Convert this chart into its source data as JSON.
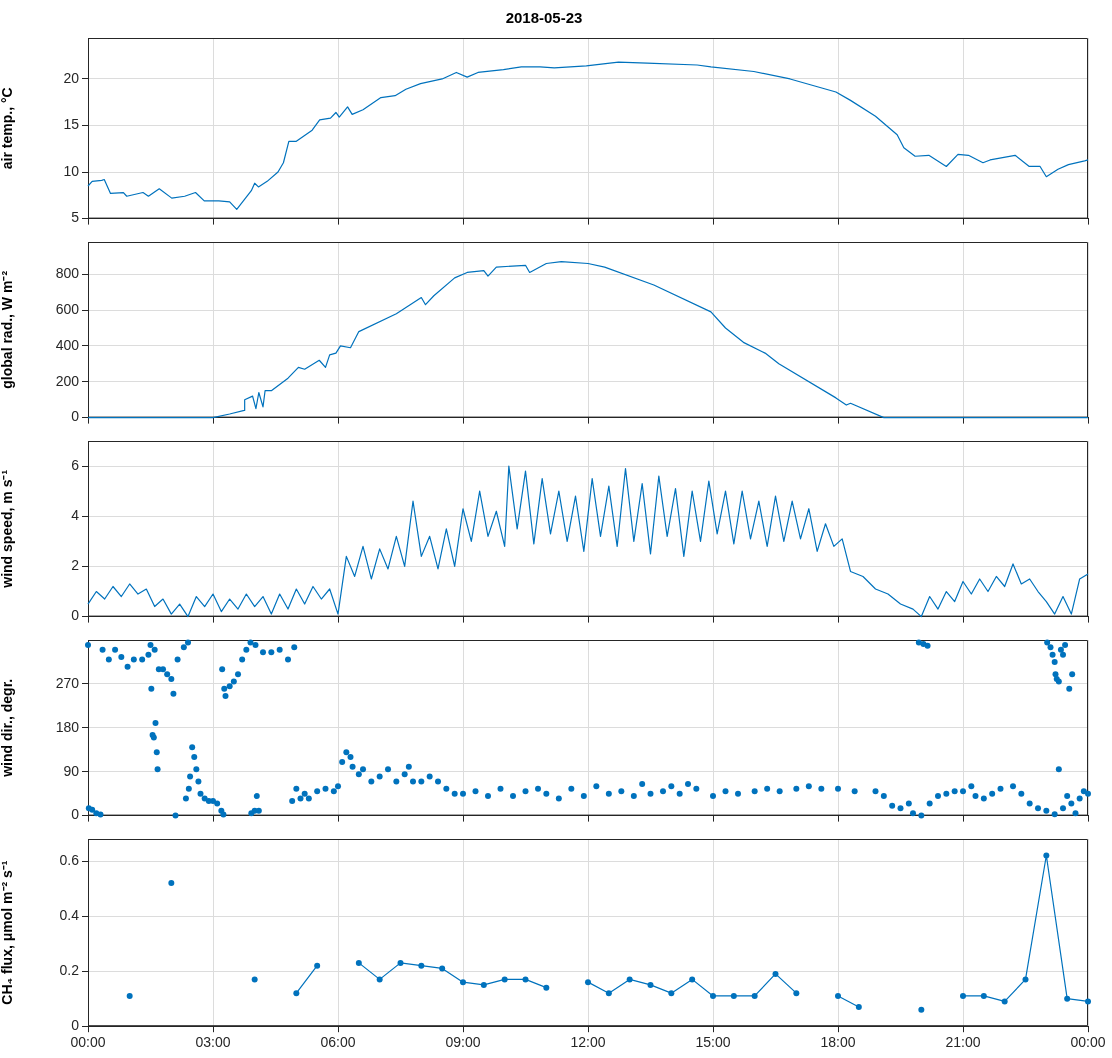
{
  "chart_data": [
    {
      "type": "line",
      "title": "2018-05-23",
      "ylabel": "air temp., °C",
      "color": "#0072bd",
      "marker": "none",
      "line_style": "solid",
      "grid": true,
      "tick_labels": "y",
      "xlim": [
        0,
        24
      ],
      "xticks": [
        {
          "value": 0,
          "label": null
        },
        {
          "value": 3,
          "label": null
        },
        {
          "value": 6,
          "label": null
        },
        {
          "value": 9,
          "label": null
        },
        {
          "value": 12,
          "label": null
        },
        {
          "value": 15,
          "label": null
        },
        {
          "value": 18,
          "label": null
        },
        {
          "value": 21,
          "label": null
        },
        {
          "value": 24,
          "label": null
        }
      ],
      "ylim": [
        5,
        24.4
      ],
      "yticks": [
        5,
        10,
        15,
        20
      ],
      "x": [
        0,
        0.1,
        0.33,
        0.39,
        0.54,
        0.85,
        0.93,
        1.32,
        1.45,
        1.71,
        2.01,
        2.32,
        2.58,
        2.79,
        3.14,
        3.4,
        3.57,
        3.92,
        4.0,
        4.09,
        4.3,
        4.56,
        4.69,
        4.82,
        5.0,
        5.38,
        5.56,
        5.82,
        5.95,
        6.03,
        6.23,
        6.34,
        6.6,
        7.03,
        7.37,
        7.63,
        7.98,
        8.5,
        8.84,
        9.1,
        9.36,
        9.97,
        10.4,
        10.85,
        11.19,
        11.96,
        12.73,
        13.42,
        14.62,
        14.95,
        15.98,
        16.85,
        17.95,
        18.3,
        18.9,
        19.42,
        19.58,
        19.85,
        20.18,
        20.6,
        20.88,
        21.13,
        21.48,
        21.65,
        22.25,
        22.59,
        22.85,
        23.0,
        23.28,
        23.53,
        23.92,
        24
      ],
      "values": [
        8.5,
        9.0,
        9.1,
        9.2,
        7.7,
        7.8,
        7.4,
        7.8,
        7.4,
        8.2,
        7.2,
        7.4,
        7.8,
        6.9,
        6.9,
        6.8,
        6.0,
        8.0,
        8.8,
        8.4,
        9.0,
        10.0,
        11.0,
        13.3,
        13.3,
        14.5,
        15.6,
        15.8,
        16.4,
        15.9,
        17.0,
        16.2,
        16.7,
        18.0,
        18.2,
        18.9,
        19.5,
        20.0,
        20.7,
        20.2,
        20.7,
        21.0,
        21.3,
        21.3,
        21.2,
        21.4,
        21.8,
        21.7,
        21.5,
        21.3,
        20.8,
        20.0,
        18.6,
        17.7,
        16.0,
        14.0,
        12.6,
        11.7,
        11.8,
        10.6,
        11.9,
        11.8,
        11.0,
        11.3,
        11.8,
        10.6,
        10.6,
        9.5,
        10.3,
        10.8,
        11.2,
        11.3
      ]
    },
    {
      "type": "line",
      "ylabel": "global rad., W m⁻²",
      "color": "#0072bd",
      "marker": "none",
      "line_style": "solid",
      "grid": true,
      "tick_labels": "y",
      "xlim": [
        0,
        24
      ],
      "xticks": [
        {
          "value": 0,
          "label": null
        },
        {
          "value": 3,
          "label": null
        },
        {
          "value": 6,
          "label": null
        },
        {
          "value": 9,
          "label": null
        },
        {
          "value": 12,
          "label": null
        },
        {
          "value": 15,
          "label": null
        },
        {
          "value": 18,
          "label": null
        },
        {
          "value": 21,
          "label": null
        },
        {
          "value": 24,
          "label": null
        }
      ],
      "ylim": [
        0,
        980
      ],
      "yticks": [
        0,
        200,
        400,
        600,
        800
      ],
      "x": [
        0,
        3.0,
        3.4,
        3.75,
        3.76,
        3.95,
        4.03,
        4.1,
        4.2,
        4.25,
        4.4,
        4.8,
        5.05,
        5.2,
        5.55,
        5.7,
        5.8,
        5.95,
        6.06,
        6.3,
        6.5,
        7.4,
        8.0,
        8.1,
        8.3,
        8.8,
        9.1,
        9.5,
        9.6,
        9.8,
        10.5,
        10.6,
        11.0,
        11.36,
        12.0,
        12.4,
        13.58,
        14.95,
        15.3,
        15.73,
        16.25,
        16.58,
        17.95,
        18.2,
        18.3,
        19.1,
        24
      ],
      "values": [
        0,
        0,
        20,
        40,
        100,
        120,
        50,
        140,
        60,
        150,
        150,
        220,
        280,
        270,
        320,
        280,
        350,
        360,
        400,
        390,
        480,
        580,
        670,
        630,
        680,
        780,
        810,
        820,
        790,
        840,
        850,
        810,
        860,
        870,
        860,
        840,
        740,
        590,
        500,
        420,
        360,
        300,
        110,
        70,
        80,
        0,
        0
      ]
    },
    {
      "type": "line",
      "ylabel": "wind speed, m s⁻¹",
      "color": "#0072bd",
      "marker": "none",
      "line_style": "solid",
      "grid": true,
      "tick_labels": "y",
      "xlim": [
        0,
        24
      ],
      "xticks": [
        {
          "value": 0,
          "label": null
        },
        {
          "value": 3,
          "label": null
        },
        {
          "value": 6,
          "label": null
        },
        {
          "value": 9,
          "label": null
        },
        {
          "value": 12,
          "label": null
        },
        {
          "value": 15,
          "label": null
        },
        {
          "value": 18,
          "label": null
        },
        {
          "value": 21,
          "label": null
        },
        {
          "value": 24,
          "label": null
        }
      ],
      "ylim": [
        0,
        7
      ],
      "yticks": [
        0,
        2,
        4,
        6
      ],
      "x": [
        0,
        0.2,
        0.4,
        0.6,
        0.8,
        1.0,
        1.2,
        1.4,
        1.6,
        1.8,
        2.0,
        2.2,
        2.4,
        2.6,
        2.8,
        3.0,
        3.2,
        3.4,
        3.6,
        3.8,
        4.0,
        4.2,
        4.4,
        4.6,
        4.8,
        5.0,
        5.2,
        5.4,
        5.6,
        5.8,
        6.0,
        6.2,
        6.4,
        6.6,
        6.8,
        7.0,
        7.2,
        7.4,
        7.6,
        7.8,
        8.0,
        8.2,
        8.4,
        8.6,
        8.8,
        9.0,
        9.2,
        9.4,
        9.6,
        9.8,
        10.0,
        10.1,
        10.3,
        10.5,
        10.7,
        10.9,
        11.1,
        11.3,
        11.5,
        11.7,
        11.9,
        12.1,
        12.3,
        12.5,
        12.7,
        12.9,
        13.1,
        13.3,
        13.5,
        13.7,
        13.9,
        14.1,
        14.3,
        14.5,
        14.7,
        14.9,
        15.1,
        15.3,
        15.5,
        15.7,
        15.9,
        16.1,
        16.3,
        16.5,
        16.7,
        16.9,
        17.1,
        17.3,
        17.5,
        17.7,
        17.9,
        18.1,
        18.3,
        18.6,
        18.9,
        19.2,
        19.5,
        19.8,
        20.0,
        20.2,
        20.4,
        20.6,
        20.8,
        21.0,
        21.2,
        21.4,
        21.6,
        21.8,
        22.0,
        22.2,
        22.4,
        22.6,
        22.8,
        23.0,
        23.2,
        23.4,
        23.6,
        23.8,
        24
      ],
      "values": [
        0.5,
        1.0,
        0.7,
        1.2,
        0.8,
        1.3,
        0.9,
        1.1,
        0.4,
        0.7,
        0.1,
        0.5,
        0.0,
        0.8,
        0.4,
        0.9,
        0.2,
        0.7,
        0.3,
        0.9,
        0.4,
        0.8,
        0.1,
        0.9,
        0.3,
        1.1,
        0.5,
        1.2,
        0.7,
        1.1,
        0.1,
        2.4,
        1.6,
        2.8,
        1.5,
        2.7,
        1.9,
        3.2,
        2.0,
        4.6,
        2.4,
        3.2,
        1.9,
        3.5,
        2.0,
        4.3,
        3.0,
        5.0,
        3.2,
        4.2,
        2.8,
        6.0,
        3.5,
        5.8,
        2.9,
        5.5,
        3.3,
        5.0,
        3.0,
        4.8,
        2.6,
        5.5,
        3.2,
        5.2,
        2.8,
        5.9,
        3.0,
        5.3,
        2.5,
        5.6,
        3.2,
        5.1,
        2.4,
        5.0,
        3.0,
        5.4,
        3.3,
        5.0,
        2.9,
        5.0,
        3.1,
        4.6,
        2.8,
        4.8,
        3.0,
        4.6,
        3.1,
        4.3,
        2.6,
        3.7,
        2.8,
        3.1,
        1.8,
        1.6,
        1.1,
        0.9,
        0.5,
        0.3,
        0.0,
        0.8,
        0.3,
        1.0,
        0.6,
        1.4,
        0.9,
        1.5,
        1.0,
        1.6,
        1.2,
        2.1,
        1.3,
        1.5,
        1.0,
        0.6,
        0.1,
        0.8,
        0.1,
        1.5,
        1.7
      ]
    },
    {
      "type": "scatter",
      "ylabel": "wind dir., degr.",
      "color": "#0072bd",
      "marker": "circle",
      "grid": true,
      "tick_labels": "y",
      "xlim": [
        0,
        24
      ],
      "xticks": [
        {
          "value": 0,
          "label": null
        },
        {
          "value": 3,
          "label": null
        },
        {
          "value": 6,
          "label": null
        },
        {
          "value": 9,
          "label": null
        },
        {
          "value": 12,
          "label": null
        },
        {
          "value": 15,
          "label": null
        },
        {
          "value": 18,
          "label": null
        },
        {
          "value": 21,
          "label": null
        },
        {
          "value": 24,
          "label": null
        }
      ],
      "ylim": [
        0,
        360
      ],
      "yticks": [
        0,
        90,
        180,
        270
      ],
      "x": [
        0.0,
        0.02,
        0.1,
        0.2,
        0.3,
        0.35,
        0.5,
        0.65,
        0.8,
        0.95,
        1.1,
        1.3,
        1.45,
        1.5,
        1.52,
        1.6,
        1.55,
        1.58,
        1.65,
        1.62,
        1.67,
        1.7,
        1.8,
        1.9,
        2.0,
        2.05,
        2.1,
        2.15,
        2.3,
        2.4,
        2.35,
        2.42,
        2.45,
        2.5,
        2.55,
        2.6,
        2.65,
        2.7,
        2.8,
        2.9,
        3.0,
        3.1,
        3.2,
        3.25,
        3.22,
        3.27,
        3.3,
        3.4,
        3.5,
        3.6,
        3.7,
        3.8,
        3.9,
        3.92,
        4.0,
        4.05,
        4.1,
        4.02,
        4.2,
        4.4,
        4.6,
        4.8,
        4.95,
        4.9,
        5.0,
        5.1,
        5.2,
        5.3,
        5.5,
        5.7,
        5.9,
        6.0,
        6.1,
        6.2,
        6.3,
        6.35,
        6.5,
        6.6,
        6.8,
        7.0,
        7.2,
        7.4,
        7.6,
        7.7,
        7.8,
        8.0,
        8.2,
        8.4,
        8.6,
        8.8,
        9.0,
        9.3,
        9.6,
        9.9,
        10.2,
        10.5,
        10.8,
        11.0,
        11.3,
        11.6,
        11.9,
        12.2,
        12.5,
        12.8,
        13.1,
        13.3,
        13.5,
        13.8,
        14.0,
        14.2,
        14.4,
        14.6,
        15.0,
        15.3,
        15.6,
        16.0,
        16.3,
        16.6,
        17.0,
        17.3,
        17.6,
        18.0,
        18.4,
        18.9,
        19.1,
        19.3,
        19.5,
        19.7,
        19.8,
        19.94,
        20.0,
        20.05,
        20.15,
        20.2,
        20.4,
        20.6,
        20.8,
        21.0,
        21.2,
        21.3,
        21.5,
        21.7,
        21.9,
        22.2,
        22.4,
        22.6,
        22.8,
        23.0,
        23.02,
        23.1,
        23.15,
        23.2,
        23.22,
        23.25,
        23.3,
        23.35,
        23.4,
        23.45,
        23.2,
        23.3,
        23.4,
        23.55,
        23.5,
        23.62,
        23.6,
        23.7,
        23.8,
        23.9,
        24
      ],
      "values": [
        350,
        15,
        12,
        5,
        2,
        340,
        320,
        340,
        325,
        305,
        320,
        320,
        330,
        350,
        260,
        340,
        165,
        160,
        130,
        190,
        95,
        300,
        300,
        290,
        280,
        250,
        0,
        320,
        345,
        355,
        35,
        55,
        80,
        140,
        120,
        95,
        70,
        45,
        35,
        30,
        30,
        25,
        10,
        2,
        300,
        260,
        245,
        265,
        275,
        290,
        320,
        340,
        355,
        5,
        10,
        40,
        10,
        350,
        335,
        335,
        340,
        320,
        345,
        30,
        55,
        35,
        45,
        35,
        50,
        55,
        50,
        60,
        110,
        130,
        120,
        100,
        85,
        95,
        70,
        80,
        95,
        70,
        85,
        100,
        70,
        70,
        80,
        70,
        55,
        45,
        45,
        50,
        40,
        55,
        40,
        50,
        55,
        45,
        35,
        55,
        40,
        60,
        45,
        50,
        40,
        65,
        45,
        50,
        60,
        45,
        65,
        55,
        40,
        50,
        45,
        50,
        55,
        50,
        55,
        60,
        55,
        55,
        50,
        50,
        40,
        20,
        15,
        25,
        5,
        355,
        0,
        352,
        348,
        25,
        40,
        45,
        50,
        50,
        60,
        40,
        35,
        45,
        55,
        60,
        45,
        25,
        15,
        10,
        355,
        345,
        330,
        315,
        290,
        280,
        275,
        340,
        330,
        350,
        3,
        95,
        15,
        260,
        40,
        290,
        25,
        5,
        35,
        50,
        45
      ]
    },
    {
      "type": "line",
      "ylabel": "CH₄ flux, μmol m⁻² s⁻¹",
      "color": "#0072bd",
      "marker": "circle",
      "line_style": "solid",
      "grid": true,
      "xlim": [
        0,
        24
      ],
      "xticks": [
        {
          "value": 0,
          "label": "00:00"
        },
        {
          "value": 3,
          "label": "03:00"
        },
        {
          "value": 6,
          "label": "06:00"
        },
        {
          "value": 9,
          "label": "09:00"
        },
        {
          "value": 12,
          "label": "12:00"
        },
        {
          "value": 15,
          "label": "15:00"
        },
        {
          "value": 18,
          "label": "18:00"
        },
        {
          "value": 21,
          "label": "21:00"
        },
        {
          "value": 24,
          "label": "00:00"
        }
      ],
      "ylim": [
        0,
        0.68
      ],
      "yticks": [
        0,
        0.2,
        0.4,
        0.6
      ],
      "x": [
        1.0,
        1.5,
        2.0,
        2.5,
        3.0,
        3.5,
        4.0,
        4.5,
        5.0,
        5.5,
        6.0,
        6.5,
        7.0,
        7.5,
        8.0,
        8.5,
        9.0,
        9.5,
        10.0,
        10.5,
        11.0,
        11.5,
        12.0,
        12.5,
        13.0,
        13.5,
        14.0,
        14.5,
        15.0,
        15.5,
        16.0,
        16.5,
        17.0,
        17.5,
        18.0,
        18.5,
        19.0,
        19.5,
        20.0,
        20.5,
        21.0,
        21.5,
        22.0,
        22.5,
        23.0,
        23.5,
        24.0
      ],
      "values": [
        0.11,
        null,
        0.52,
        null,
        null,
        null,
        0.17,
        null,
        0.12,
        0.22,
        null,
        0.23,
        0.17,
        0.23,
        0.22,
        0.21,
        0.16,
        0.15,
        0.17,
        0.17,
        0.14,
        null,
        0.16,
        0.12,
        0.17,
        0.15,
        0.12,
        0.17,
        0.11,
        0.11,
        0.11,
        0.19,
        0.12,
        null,
        0.11,
        0.07,
        null,
        null,
        0.06,
        null,
        0.11,
        0.11,
        0.09,
        0.17,
        0.62,
        0.1,
        0.09
      ]
    }
  ]
}
